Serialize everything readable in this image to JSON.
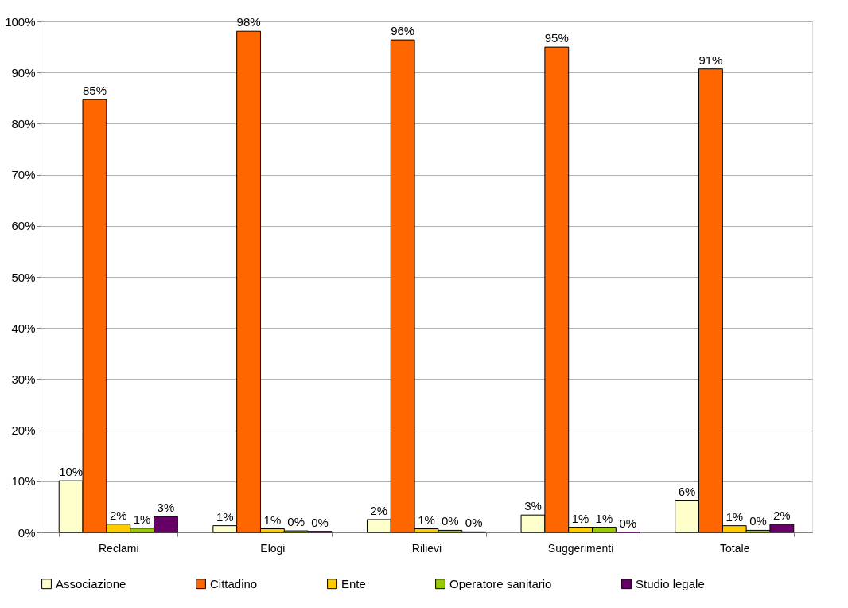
{
  "chart_data": {
    "type": "bar",
    "categories": [
      "Reclami",
      "Elogi",
      "Rilievi",
      "Suggerimenti",
      "Totale"
    ],
    "series": [
      {
        "name": "Associazione",
        "color": "#ffffcc",
        "values": [
          10.1,
          1.3,
          2.5,
          3.4,
          6.3
        ],
        "value_labels": [
          "10%",
          "1%",
          "2%",
          "3%",
          "6%"
        ]
      },
      {
        "name": "Cittadino",
        "color": "#ff6600",
        "values": [
          84.7,
          98.1,
          96.4,
          95.0,
          90.7
        ],
        "value_labels": [
          "85%",
          "98%",
          "96%",
          "95%",
          "91%"
        ]
      },
      {
        "name": "Ente",
        "color": "#ffcc00",
        "values": [
          1.6,
          0.7,
          0.7,
          1.0,
          1.3
        ],
        "value_labels": [
          "2%",
          "1%",
          "1%",
          "1%",
          "1%"
        ]
      },
      {
        "name": "Operatore sanitario",
        "color": "#99cc00",
        "values": [
          0.8,
          0.3,
          0.4,
          1.0,
          0.4
        ],
        "value_labels": [
          "1%",
          "0%",
          "0%",
          "1%",
          "0%"
        ]
      },
      {
        "name": "Studio legale",
        "color": "#660066",
        "values": [
          3.1,
          0.2,
          0.1,
          0.0,
          1.6
        ],
        "value_labels": [
          "3%",
          "0%",
          "0%",
          "0%",
          "2%"
        ]
      }
    ],
    "ylim": [
      0,
      100
    ],
    "yticks": [
      {
        "value": 0,
        "label": "0%"
      },
      {
        "value": 10,
        "label": "10%"
      },
      {
        "value": 20,
        "label": "20%"
      },
      {
        "value": 30,
        "label": "30%"
      },
      {
        "value": 40,
        "label": "40%"
      },
      {
        "value": 50,
        "label": "50%"
      },
      {
        "value": 60,
        "label": "60%"
      },
      {
        "value": 70,
        "label": "70%"
      },
      {
        "value": 80,
        "label": "80%"
      },
      {
        "value": 90,
        "label": "90%"
      },
      {
        "value": 100,
        "label": "100%"
      }
    ],
    "grid": "y",
    "legend": "bottom"
  }
}
